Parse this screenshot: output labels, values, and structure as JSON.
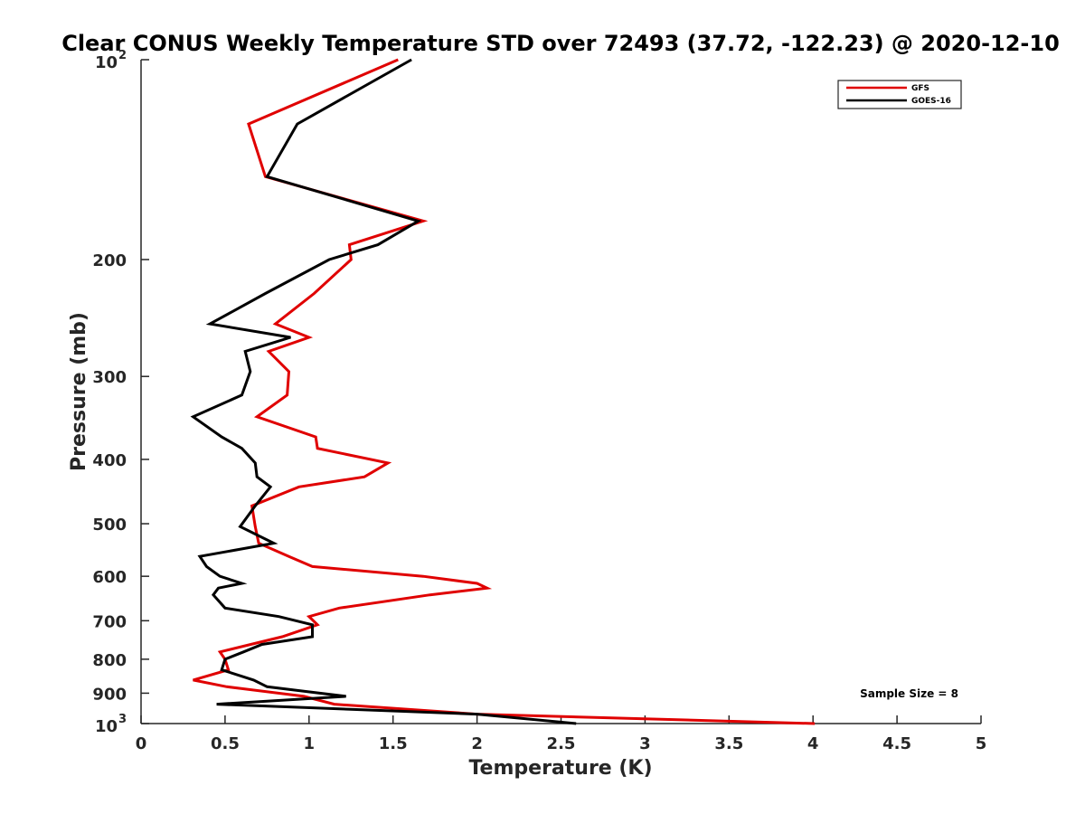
{
  "chart_data": {
    "type": "line",
    "title": "Clear CONUS Weekly Temperature STD over 72493 (37.72, -122.23) @ 2020-12-10",
    "xlabel": "Temperature (K)",
    "ylabel": "Pressure (mb)",
    "xlim": [
      0,
      5
    ],
    "ylim": [
      100,
      1000
    ],
    "yscale": "log",
    "y_reversed": true,
    "grid": false,
    "legend_position": "top-right",
    "x_ticks": [
      "0",
      "0.5",
      "1",
      "1.5",
      "2",
      "2.5",
      "3",
      "3.5",
      "4",
      "4.5",
      "5"
    ],
    "y_ticks": [
      {
        "value": 100,
        "base": "10",
        "exp": "2"
      },
      {
        "value": 200,
        "label": "200"
      },
      {
        "value": 300,
        "label": "300"
      },
      {
        "value": 400,
        "label": "400"
      },
      {
        "value": 500,
        "label": "500"
      },
      {
        "value": 600,
        "label": "600"
      },
      {
        "value": 700,
        "label": "700"
      },
      {
        "value": 800,
        "label": "800"
      },
      {
        "value": 900,
        "label": "900"
      },
      {
        "value": 1000,
        "base": "10",
        "exp": "3"
      }
    ],
    "series": [
      {
        "name": "GFS",
        "color": "#e00000",
        "points": [
          [
            1.53,
            100
          ],
          [
            0.64,
            125
          ],
          [
            0.74,
            150
          ],
          [
            1.68,
            175
          ],
          [
            1.24,
            190
          ],
          [
            1.25,
            200
          ],
          [
            1.03,
            225
          ],
          [
            0.8,
            250
          ],
          [
            1.0,
            262
          ],
          [
            0.76,
            275
          ],
          [
            0.88,
            295
          ],
          [
            0.87,
            320
          ],
          [
            0.69,
            345
          ],
          [
            1.04,
            370
          ],
          [
            1.05,
            385
          ],
          [
            1.47,
            405
          ],
          [
            1.33,
            425
          ],
          [
            0.94,
            440
          ],
          [
            0.66,
            470
          ],
          [
            0.68,
            505
          ],
          [
            0.7,
            535
          ],
          [
            0.88,
            560
          ],
          [
            1.02,
            580
          ],
          [
            1.68,
            600
          ],
          [
            2.0,
            615
          ],
          [
            2.06,
            625
          ],
          [
            1.72,
            640
          ],
          [
            1.18,
            670
          ],
          [
            1.0,
            690
          ],
          [
            1.05,
            710
          ],
          [
            0.84,
            740
          ],
          [
            0.47,
            780
          ],
          [
            0.5,
            800
          ],
          [
            0.52,
            830
          ],
          [
            0.31,
            860
          ],
          [
            0.51,
            880
          ],
          [
            0.97,
            910
          ],
          [
            1.15,
            935
          ],
          [
            2.0,
            968
          ],
          [
            4.01,
            1000
          ]
        ]
      },
      {
        "name": "GOES-16",
        "color": "#000000",
        "points": [
          [
            1.61,
            100
          ],
          [
            0.93,
            125
          ],
          [
            0.75,
            150
          ],
          [
            1.65,
            175
          ],
          [
            1.41,
            190
          ],
          [
            1.12,
            200
          ],
          [
            0.74,
            225
          ],
          [
            0.41,
            250
          ],
          [
            0.89,
            262
          ],
          [
            0.62,
            275
          ],
          [
            0.65,
            295
          ],
          [
            0.6,
            320
          ],
          [
            0.31,
            345
          ],
          [
            0.48,
            370
          ],
          [
            0.6,
            385
          ],
          [
            0.68,
            405
          ],
          [
            0.69,
            425
          ],
          [
            0.77,
            440
          ],
          [
            0.68,
            470
          ],
          [
            0.59,
            505
          ],
          [
            0.79,
            535
          ],
          [
            0.35,
            560
          ],
          [
            0.39,
            580
          ],
          [
            0.47,
            600
          ],
          [
            0.6,
            615
          ],
          [
            0.46,
            625
          ],
          [
            0.43,
            640
          ],
          [
            0.5,
            670
          ],
          [
            0.82,
            690
          ],
          [
            1.02,
            710
          ],
          [
            1.02,
            740
          ],
          [
            0.72,
            760
          ],
          [
            0.61,
            780
          ],
          [
            0.5,
            800
          ],
          [
            0.48,
            830
          ],
          [
            0.67,
            860
          ],
          [
            0.75,
            880
          ],
          [
            1.22,
            910
          ],
          [
            0.45,
            935
          ],
          [
            2.0,
            968
          ],
          [
            2.59,
            1000
          ]
        ]
      }
    ],
    "legend": [
      {
        "label": "GFS",
        "color": "#e00000"
      },
      {
        "label": "GOES-16",
        "color": "#000000"
      }
    ],
    "annotations": [
      "Sample Size = 8"
    ]
  }
}
